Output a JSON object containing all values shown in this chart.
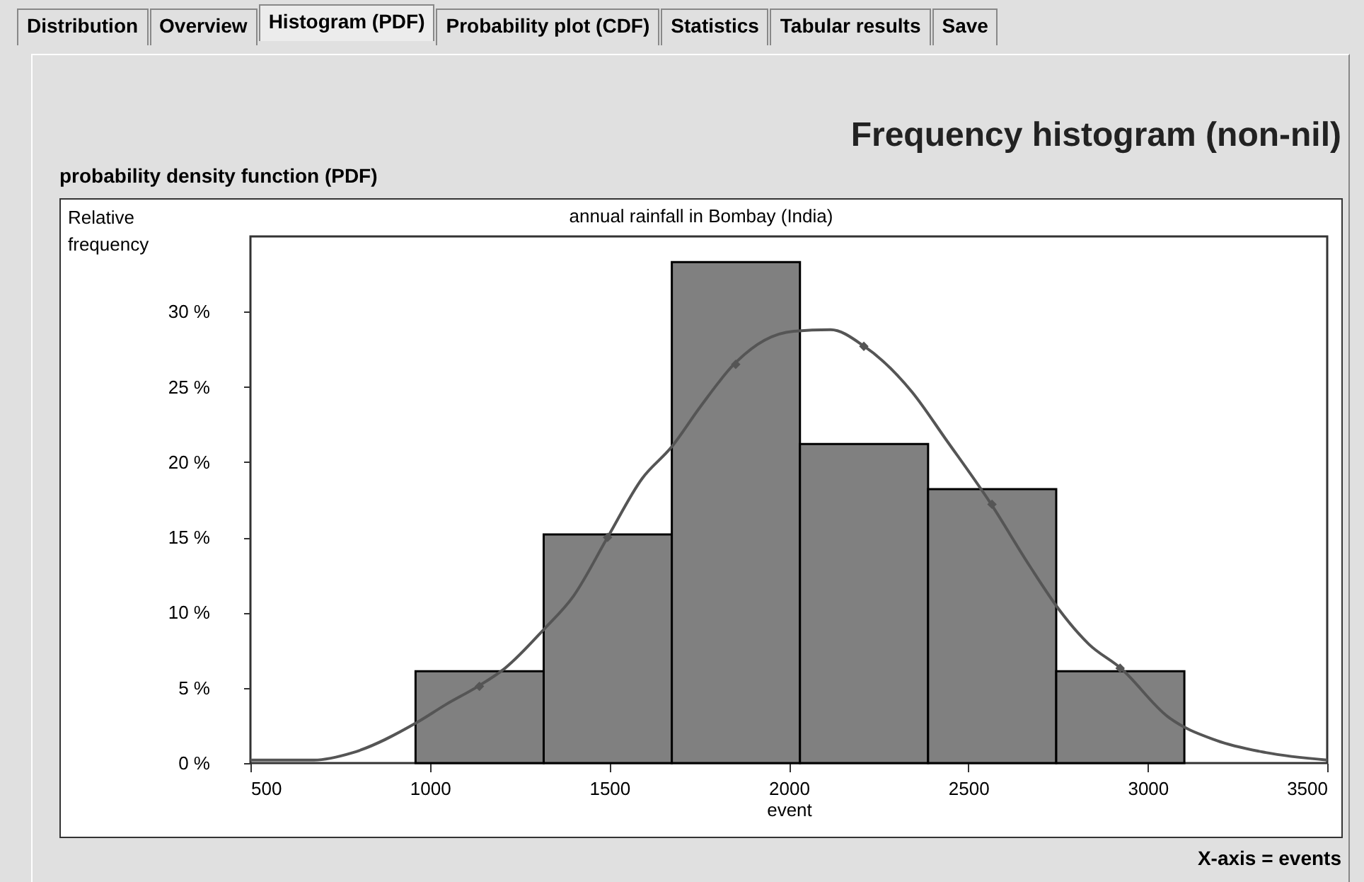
{
  "chart_data": {
    "type": "histogram",
    "title": "Frequency histogram (non-nil)",
    "subtitle": "probability density function (PDF)",
    "ylabel": "Relative frequency",
    "xlabel": "event",
    "annotations": [
      "annual rainfall in Bombay (India)",
      "X-axis = events",
      "Distribution",
      "Overview",
      "Histogram (PDF)",
      "Probability plot (CDF)",
      "Statistics",
      "Tabular results",
      "Save"
    ],
    "bins": [
      960,
      1317,
      1674,
      2031,
      2388,
      2745,
      3102
    ],
    "values": [
      6.1,
      15.2,
      33.3,
      21.2,
      18.2,
      6.1
    ],
    "color": "#808080",
    "series": [
      {
        "type": "line",
        "color": "#555555",
        "line_style": "solid",
        "x": [
          500,
          677,
          786,
          964,
          1045,
          1134,
          1209,
          1318,
          1400,
          1495,
          1591,
          1673,
          1754,
          1847,
          1932,
          2013,
          2116,
          2210,
          2342,
          2438,
          2564,
          2671,
          2753,
          2836,
          2925,
          3055,
          3192,
          3329,
          3500
        ],
        "values": [
          0.2,
          0.2,
          0.7,
          2.7,
          3.9,
          5.1,
          6.3,
          8.9,
          11.1,
          15.0,
          18.9,
          21.0,
          23.7,
          26.5,
          28.1,
          28.7,
          28.8,
          27.7,
          24.7,
          21.5,
          17.2,
          13.1,
          10.2,
          7.9,
          6.3,
          3.1,
          1.5,
          0.7,
          0.2
        ]
      },
      {
        "type": "scatter",
        "color": "#555555",
        "marker": "diamond",
        "x": [
          1138,
          1495,
          1852,
          2209,
          2566,
          2923
        ],
        "values": [
          5.1,
          15.0,
          26.5,
          27.7,
          17.2,
          6.3
        ]
      }
    ],
    "xlim": [
      500,
      3500
    ],
    "xticks": [
      500,
      1000,
      1500,
      2000,
      2500,
      3000,
      3500
    ],
    "ylim": [
      0,
      35
    ],
    "yticks": [
      {
        "value": 0,
        "label": "0 %"
      },
      {
        "value": 5,
        "label": "5 %"
      },
      {
        "value": 10,
        "label": "10 %"
      },
      {
        "value": 15,
        "label": "15 %"
      },
      {
        "value": 20,
        "label": "20 %"
      },
      {
        "value": 25,
        "label": "25 %"
      },
      {
        "value": 30,
        "label": "30 %"
      }
    ],
    "grid": false
  }
}
